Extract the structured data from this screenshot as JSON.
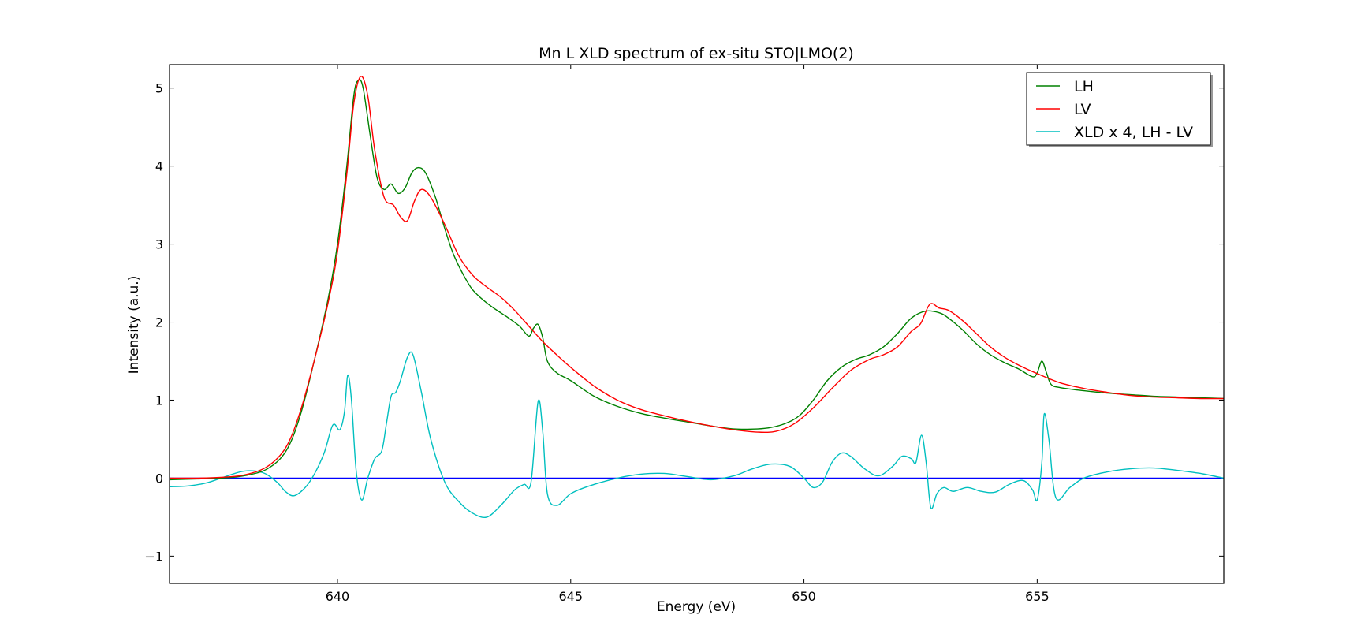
{
  "chart_data": {
    "type": "line",
    "title": "Mn L XLD spectrum of ex-situ STO|LMO(2)",
    "xlabel": "Energy (eV)",
    "ylabel": "Intensity (a.u.)",
    "xlim": [
      636.4,
      659.0
    ],
    "ylim": [
      -1.35,
      5.3
    ],
    "xticks": [
      640,
      645,
      650,
      655
    ],
    "xtick_labels": [
      "640",
      "645",
      "650",
      "655"
    ],
    "yticks": [
      -1,
      0,
      1,
      2,
      3,
      4,
      5
    ],
    "ytick_labels": [
      "−1",
      "0",
      "1",
      "2",
      "3",
      "4",
      "5"
    ],
    "grid": false,
    "legend_position": "top-right",
    "series": [
      {
        "name": "LH",
        "color": "#008000",
        "x": [
          636.4,
          637.0,
          637.5,
          638.0,
          638.5,
          638.9,
          639.2,
          639.5,
          639.8,
          640.0,
          640.2,
          640.35,
          640.45,
          640.55,
          640.7,
          640.85,
          641.0,
          641.15,
          641.3,
          641.45,
          641.6,
          641.75,
          641.9,
          642.1,
          642.3,
          642.5,
          642.8,
          643.0,
          643.3,
          643.6,
          643.9,
          644.1,
          644.2,
          644.3,
          644.4,
          644.5,
          644.7,
          645.0,
          645.5,
          646.0,
          646.5,
          647.0,
          647.5,
          648.0,
          648.5,
          649.0,
          649.3,
          649.6,
          649.9,
          650.2,
          650.5,
          650.8,
          651.1,
          651.4,
          651.7,
          652.0,
          652.3,
          652.6,
          652.9,
          653.1,
          653.4,
          653.7,
          654.0,
          654.3,
          654.6,
          654.9,
          655.0,
          655.1,
          655.2,
          655.3,
          655.5,
          656.0,
          656.5,
          657.0,
          657.5,
          658.0,
          658.5,
          659.0
        ],
        "y": [
          -0.02,
          -0.01,
          0.0,
          0.03,
          0.12,
          0.35,
          0.8,
          1.5,
          2.3,
          3.0,
          4.0,
          4.9,
          5.1,
          5.0,
          4.4,
          3.85,
          3.7,
          3.77,
          3.65,
          3.72,
          3.92,
          3.98,
          3.9,
          3.6,
          3.2,
          2.85,
          2.5,
          2.35,
          2.2,
          2.08,
          1.95,
          1.82,
          1.92,
          1.97,
          1.8,
          1.5,
          1.35,
          1.25,
          1.05,
          0.92,
          0.83,
          0.77,
          0.72,
          0.67,
          0.63,
          0.63,
          0.65,
          0.7,
          0.8,
          1.0,
          1.25,
          1.42,
          1.52,
          1.58,
          1.68,
          1.85,
          2.05,
          2.14,
          2.12,
          2.05,
          1.9,
          1.72,
          1.58,
          1.48,
          1.4,
          1.3,
          1.35,
          1.5,
          1.35,
          1.2,
          1.16,
          1.12,
          1.09,
          1.07,
          1.05,
          1.04,
          1.03,
          1.02
        ]
      },
      {
        "name": "LV",
        "color": "#ff0000",
        "x": [
          636.4,
          637.0,
          637.5,
          638.0,
          638.5,
          638.9,
          639.2,
          639.5,
          639.8,
          640.0,
          640.2,
          640.35,
          640.5,
          640.65,
          640.8,
          641.0,
          641.2,
          641.35,
          641.5,
          641.65,
          641.8,
          642.0,
          642.3,
          642.6,
          642.9,
          643.2,
          643.5,
          643.8,
          644.1,
          644.4,
          644.7,
          645.0,
          645.5,
          646.0,
          646.5,
          647.0,
          647.5,
          648.0,
          648.5,
          649.0,
          649.4,
          649.8,
          650.2,
          650.6,
          651.0,
          651.4,
          651.7,
          652.0,
          652.3,
          652.5,
          652.7,
          652.9,
          653.1,
          653.4,
          653.7,
          654.0,
          654.3,
          654.6,
          655.0,
          655.5,
          656.0,
          656.5,
          657.0,
          657.5,
          658.0,
          658.5,
          659.0
        ],
        "y": [
          0.0,
          0.0,
          0.01,
          0.04,
          0.15,
          0.4,
          0.85,
          1.5,
          2.25,
          2.9,
          3.9,
          4.8,
          5.15,
          4.9,
          4.2,
          3.6,
          3.5,
          3.35,
          3.3,
          3.55,
          3.7,
          3.6,
          3.25,
          2.85,
          2.6,
          2.45,
          2.32,
          2.15,
          1.95,
          1.75,
          1.58,
          1.42,
          1.18,
          1.0,
          0.88,
          0.8,
          0.73,
          0.67,
          0.62,
          0.59,
          0.6,
          0.7,
          0.9,
          1.15,
          1.38,
          1.52,
          1.58,
          1.68,
          1.88,
          1.98,
          2.23,
          2.18,
          2.15,
          2.02,
          1.85,
          1.68,
          1.55,
          1.45,
          1.34,
          1.22,
          1.15,
          1.1,
          1.06,
          1.04,
          1.03,
          1.02,
          1.02
        ]
      },
      {
        "name": " XLD x 4, LH - LV",
        "color": "#00bfbf",
        "x": [
          636.4,
          636.8,
          637.2,
          637.6,
          638.0,
          638.4,
          638.7,
          638.9,
          639.1,
          639.4,
          639.7,
          639.9,
          640.05,
          640.15,
          640.22,
          640.3,
          640.4,
          640.52,
          640.65,
          640.8,
          640.95,
          641.05,
          641.15,
          641.25,
          641.35,
          641.5,
          641.62,
          641.8,
          642.0,
          642.3,
          642.6,
          642.9,
          643.2,
          643.5,
          643.8,
          644.0,
          644.15,
          644.3,
          644.4,
          644.5,
          644.7,
          645.0,
          645.4,
          646.0,
          646.5,
          647.0,
          647.5,
          648.0,
          648.5,
          648.9,
          649.3,
          649.7,
          650.0,
          650.2,
          650.4,
          650.6,
          650.8,
          651.0,
          651.3,
          651.6,
          651.9,
          652.1,
          652.3,
          652.4,
          652.52,
          652.62,
          652.72,
          652.85,
          653.0,
          653.2,
          653.5,
          653.8,
          654.1,
          654.4,
          654.7,
          654.9,
          655.0,
          655.1,
          655.15,
          655.25,
          655.4,
          655.7,
          656.0,
          656.5,
          657.0,
          657.5,
          658.0,
          658.5,
          659.0
        ],
        "y": [
          -0.11,
          -0.1,
          -0.06,
          0.02,
          0.09,
          0.07,
          -0.05,
          -0.18,
          -0.22,
          -0.05,
          0.3,
          0.68,
          0.62,
          0.85,
          1.32,
          1.0,
          0.1,
          -0.28,
          0.0,
          0.25,
          0.35,
          0.7,
          1.05,
          1.1,
          1.25,
          1.55,
          1.58,
          1.1,
          0.5,
          -0.05,
          -0.3,
          -0.45,
          -0.5,
          -0.35,
          -0.15,
          -0.08,
          -0.05,
          0.98,
          0.6,
          -0.2,
          -0.35,
          -0.2,
          -0.1,
          0.0,
          0.05,
          0.06,
          0.02,
          -0.02,
          0.03,
          0.12,
          0.18,
          0.15,
          0.0,
          -0.12,
          -0.05,
          0.2,
          0.32,
          0.28,
          0.12,
          0.03,
          0.15,
          0.28,
          0.25,
          0.2,
          0.55,
          0.2,
          -0.38,
          -0.2,
          -0.12,
          -0.17,
          -0.12,
          -0.17,
          -0.18,
          -0.08,
          -0.03,
          -0.15,
          -0.28,
          0.2,
          0.82,
          0.5,
          -0.25,
          -0.12,
          0.0,
          0.08,
          0.12,
          0.13,
          0.1,
          0.06,
          0.0
        ]
      },
      {
        "name": "",
        "color": "#0000ff",
        "x": [
          636.4,
          659.0
        ],
        "y": [
          0.0,
          0.0
        ]
      }
    ]
  }
}
